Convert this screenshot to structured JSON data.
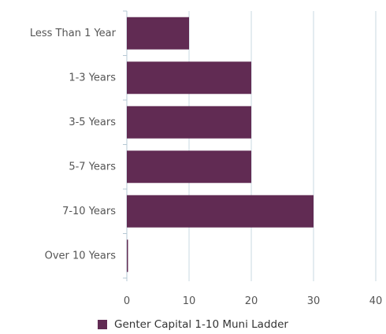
{
  "chart_data": {
    "type": "bar",
    "orientation": "horizontal",
    "categories": [
      "Less Than 1 Year",
      "1-3 Years",
      "3-5 Years",
      "5-7 Years",
      "7-10 Years",
      "Over 10 Years"
    ],
    "series": [
      {
        "name": "Genter Capital 1-10 Muni Ladder",
        "values": [
          10,
          20,
          20,
          20,
          30,
          0
        ]
      }
    ],
    "xlim": [
      0,
      40
    ],
    "xticks": [
      0,
      10,
      20,
      30,
      40
    ],
    "grid": true,
    "legend_position": "bottom",
    "colors": {
      "bar": "#612b53",
      "grid": "#c8d8e2",
      "axis": "#b6c8d4"
    }
  }
}
